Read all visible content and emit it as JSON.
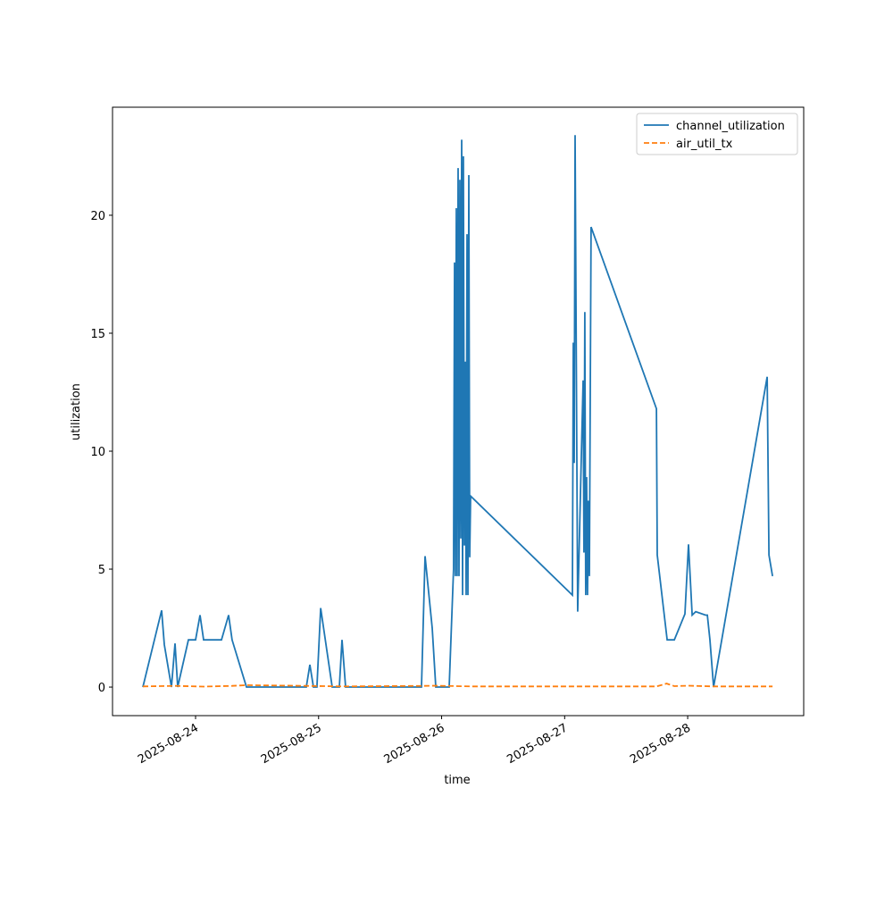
{
  "chart_data": {
    "type": "line",
    "xlabel": "time",
    "ylabel": "utilization",
    "xlim": [
      "2025-08-23T07:48",
      "2025-08-28T22:38"
    ],
    "ylim": [
      -1.21,
      24.58
    ],
    "xticks": [
      "2025-08-24",
      "2025-08-25",
      "2025-08-26",
      "2025-08-27",
      "2025-08-28"
    ],
    "yticks": [
      0,
      5,
      10,
      15,
      20
    ],
    "legend": "upper right",
    "series": [
      {
        "name": "channel_utilization",
        "color": "#1f77b4",
        "dash": "solid",
        "x": [
          "2025-08-23T13:43",
          "2025-08-23T17:23",
          "2025-08-23T17:54",
          "2025-08-23T19:18",
          "2025-08-23T20:00",
          "2025-08-23T20:31",
          "2025-08-23T22:36",
          "2025-08-24T00:00",
          "2025-08-24T00:52",
          "2025-08-24T01:34",
          "2025-08-24T05:03",
          "2025-08-24T06:27",
          "2025-08-24T07:08",
          "2025-08-24T09:56",
          "2025-08-24T21:36",
          "2025-08-24T22:18",
          "2025-08-24T23:00",
          "2025-08-24T23:41",
          "2025-08-25T00:24",
          "2025-08-25T02:39",
          "2025-08-25T04:03",
          "2025-08-25T04:34",
          "2025-08-25T05:16",
          "2025-08-25T20:04",
          "2025-08-25T20:46",
          "2025-08-25T22:10",
          "2025-08-25T22:52",
          "2025-08-26T01:28",
          "2025-08-26T02:20",
          "2025-08-26T02:31",
          "2025-08-26T02:41",
          "2025-08-26T02:52",
          "2025-08-26T03:02",
          "2025-08-26T03:13",
          "2025-08-26T03:23",
          "2025-08-26T03:34",
          "2025-08-26T03:44",
          "2025-08-26T03:55",
          "2025-08-26T04:05",
          "2025-08-26T04:15",
          "2025-08-26T04:26",
          "2025-08-26T04:36",
          "2025-08-26T04:47",
          "2025-08-26T04:57",
          "2025-08-26T05:08",
          "2025-08-26T05:18",
          "2025-08-26T05:29",
          "2025-08-26T05:39",
          "2025-08-27T01:31",
          "2025-08-27T01:41",
          "2025-08-27T01:52",
          "2025-08-27T02:02",
          "2025-08-27T02:33",
          "2025-08-27T03:36",
          "2025-08-27T03:46",
          "2025-08-27T03:56",
          "2025-08-27T04:07",
          "2025-08-27T04:17",
          "2025-08-27T04:28",
          "2025-08-27T04:38",
          "2025-08-27T04:49",
          "2025-08-27T05:09",
          "2025-08-27T17:54",
          "2025-08-27T18:04",
          "2025-08-27T20:00",
          "2025-08-27T21:23",
          "2025-08-27T23:28",
          "2025-08-28T00:10",
          "2025-08-28T00:52",
          "2025-08-28T01:34",
          "2025-08-28T03:29",
          "2025-08-28T03:50",
          "2025-08-28T04:21",
          "2025-08-28T05:03",
          "2025-08-28T15:30",
          "2025-08-28T15:51",
          "2025-08-28T16:33"
        ],
        "values": [
          0,
          3.25,
          1.8,
          0,
          1.85,
          0,
          2.0,
          2.0,
          3.05,
          2.0,
          2.0,
          3.05,
          2.0,
          0,
          0,
          0.95,
          0,
          0,
          3.35,
          0,
          0,
          2.0,
          0,
          0,
          5.55,
          2.5,
          0,
          0,
          5,
          18,
          4.7,
          20.3,
          4.7,
          22,
          4.7,
          21.5,
          6.3,
          23.2,
          3.9,
          22.5,
          6,
          13.8,
          3.9,
          19.2,
          3.9,
          21.7,
          5.5,
          8.1,
          3.9,
          14.6,
          9.5,
          23.4,
          3.2,
          13.0,
          5.7,
          15.9,
          3.9,
          8.9,
          3.9,
          7.9,
          4.7,
          19.5,
          11.8,
          5.6,
          2.0,
          2.0,
          3.1,
          6.05,
          3.05,
          3.2,
          3.05,
          3.05,
          2.0,
          0,
          13.15,
          5.6,
          4.7
        ]
      },
      {
        "name": "air_util_tx",
        "color": "#ff7f0e",
        "dash": "dashed",
        "x": [
          "2025-08-23T13:43",
          "2025-08-23T20:00",
          "2025-08-24T01:34",
          "2025-08-24T07:08",
          "2025-08-24T09:56",
          "2025-08-24T21:36",
          "2025-08-25T04:34",
          "2025-08-25T20:46",
          "2025-08-25T22:52",
          "2025-08-26T05:39",
          "2025-08-27T01:31",
          "2025-08-27T17:54",
          "2025-08-27T19:54",
          "2025-08-27T21:23",
          "2025-08-28T00:10",
          "2025-08-28T05:03",
          "2025-08-28T16:33"
        ],
        "values": [
          0.03,
          0.05,
          0.02,
          0.05,
          0.08,
          0.05,
          0.03,
          0.05,
          0.06,
          0.03,
          0.03,
          0.03,
          0.15,
          0.04,
          0.06,
          0.03,
          0.03
        ]
      }
    ]
  }
}
